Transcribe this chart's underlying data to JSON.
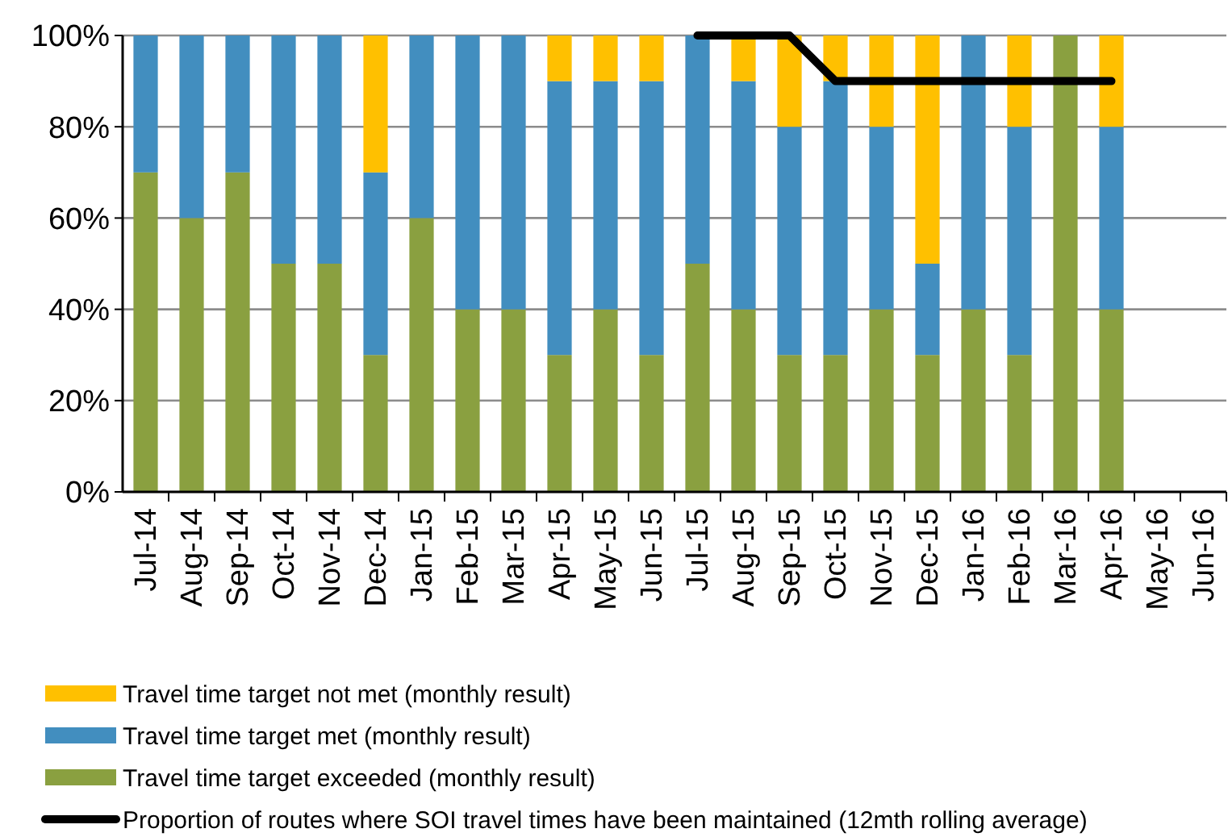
{
  "chart_data": {
    "type": "bar",
    "stacked": true,
    "categories": [
      "Jul-14",
      "Aug-14",
      "Sep-14",
      "Oct-14",
      "Nov-14",
      "Dec-14",
      "Jan-15",
      "Feb-15",
      "Mar-15",
      "Apr-15",
      "May-15",
      "Jun-15",
      "Jul-15",
      "Aug-15",
      "Sep-15",
      "Oct-15",
      "Nov-15",
      "Dec-15",
      "Jan-16",
      "Feb-16",
      "Mar-16",
      "Apr-16",
      "May-16",
      "Jun-16"
    ],
    "series": [
      {
        "name": "Travel time target exceeded (monthly result)",
        "color": "#8aa040",
        "values": [
          70,
          60,
          70,
          50,
          50,
          30,
          60,
          40,
          40,
          30,
          40,
          30,
          50,
          40,
          30,
          30,
          40,
          30,
          40,
          30,
          100,
          40,
          null,
          null
        ]
      },
      {
        "name": "Travel time target met (monthly result)",
        "color": "#428ebf",
        "values": [
          30,
          40,
          30,
          50,
          50,
          40,
          40,
          60,
          60,
          60,
          50,
          60,
          50,
          50,
          50,
          60,
          40,
          20,
          60,
          50,
          0,
          40,
          null,
          null
        ]
      },
      {
        "name": "Travel time target not met (monthly result)",
        "color": "#ffc000",
        "values": [
          0,
          0,
          0,
          0,
          0,
          30,
          0,
          0,
          0,
          10,
          10,
          10,
          0,
          10,
          20,
          10,
          20,
          50,
          0,
          20,
          0,
          20,
          null,
          null
        ]
      },
      {
        "name": "Proportion of routes where SOI travel times have been maintained (12mth rolling average)",
        "type": "line",
        "color": "#000000",
        "values": [
          null,
          null,
          null,
          null,
          null,
          null,
          null,
          null,
          null,
          null,
          null,
          null,
          100,
          100,
          100,
          90,
          90,
          90,
          90,
          90,
          90,
          90,
          null,
          null
        ]
      }
    ],
    "ylim": [
      0,
      100
    ],
    "yticks": [
      {
        "value": 0,
        "label": "0%"
      },
      {
        "value": 20,
        "label": "20%"
      },
      {
        "value": 40,
        "label": "40%"
      },
      {
        "value": 60,
        "label": "60%"
      },
      {
        "value": 80,
        "label": "80%"
      },
      {
        "value": 100,
        "label": "100%"
      }
    ],
    "grid": "y",
    "legend": "bottom",
    "marker": "none",
    "line_style": "solid"
  }
}
